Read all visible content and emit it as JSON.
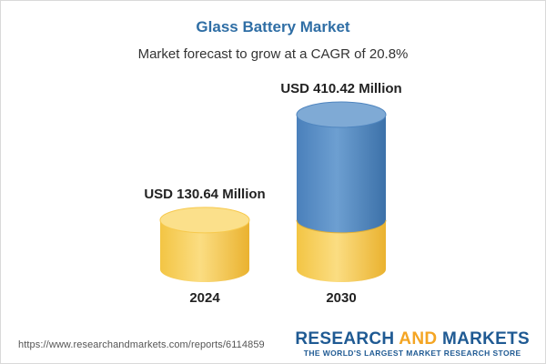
{
  "header": {
    "title": "Glass Battery Market",
    "subtitle": "Market forecast to grow at a CAGR of 20.8%"
  },
  "chart_data": {
    "type": "bar",
    "title": "Glass Battery Market",
    "subtitle": "Market forecast to grow at a CAGR of 20.8%",
    "categories": [
      "2024",
      "2030"
    ],
    "values": [
      130.64,
      410.42
    ],
    "value_labels": [
      "USD 130.64 Million",
      "USD 410.42 Million"
    ],
    "unit": "USD Million",
    "xlabel": "",
    "ylabel": "",
    "grid": false,
    "legend": "none",
    "colors": {
      "base": "#f7c94d",
      "base_light": "#fbe08b",
      "base_dark": "#e7ab25",
      "growth": "#4f85bf",
      "growth_light": "#7faad5",
      "growth_dark": "#3a6ea5"
    }
  },
  "footer": {
    "source": "https://www.researchandmarkets.com/reports/6114859",
    "brand_part1": "RESEARCH ",
    "brand_part2": "AND",
    "brand_part3": " MARKETS",
    "brand_tagline": "THE WORLD'S LARGEST MARKET RESEARCH STORE"
  }
}
